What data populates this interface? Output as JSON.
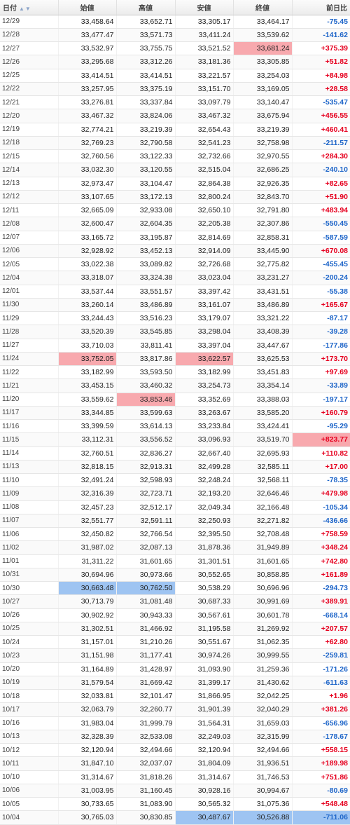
{
  "headers": {
    "date": "日付",
    "open": "始値",
    "high": "高値",
    "low": "安値",
    "close": "終値",
    "change": "前日比"
  },
  "colors": {
    "positive": "#e6001f",
    "negative": "#1f66c9",
    "highlight_max": "#f8a9ae",
    "highlight_min": "#9ec4f2"
  },
  "rows": [
    {
      "date": "12/29",
      "open": "33,458.64",
      "high": "33,652.71",
      "low": "33,305.17",
      "close": "33,464.17",
      "change": "-75.45"
    },
    {
      "date": "12/28",
      "open": "33,477.47",
      "high": "33,571.73",
      "low": "33,411.24",
      "close": "33,539.62",
      "change": "-141.62"
    },
    {
      "date": "12/27",
      "open": "33,532.97",
      "high": "33,755.75",
      "low": "33,521.52",
      "close": "33,681.24",
      "change": "+375.39",
      "hl": {
        "close": "red"
      }
    },
    {
      "date": "12/26",
      "open": "33,295.68",
      "high": "33,312.26",
      "low": "33,181.36",
      "close": "33,305.85",
      "change": "+51.82"
    },
    {
      "date": "12/25",
      "open": "33,414.51",
      "high": "33,414.51",
      "low": "33,221.57",
      "close": "33,254.03",
      "change": "+84.98"
    },
    {
      "date": "12/22",
      "open": "33,257.95",
      "high": "33,375.19",
      "low": "33,151.70",
      "close": "33,169.05",
      "change": "+28.58"
    },
    {
      "date": "12/21",
      "open": "33,276.81",
      "high": "33,337.84",
      "low": "33,097.79",
      "close": "33,140.47",
      "change": "-535.47"
    },
    {
      "date": "12/20",
      "open": "33,467.32",
      "high": "33,824.06",
      "low": "33,467.32",
      "close": "33,675.94",
      "change": "+456.55"
    },
    {
      "date": "12/19",
      "open": "32,774.21",
      "high": "33,219.39",
      "low": "32,654.43",
      "close": "33,219.39",
      "change": "+460.41"
    },
    {
      "date": "12/18",
      "open": "32,769.23",
      "high": "32,790.58",
      "low": "32,541.23",
      "close": "32,758.98",
      "change": "-211.57"
    },
    {
      "date": "12/15",
      "open": "32,760.56",
      "high": "33,122.33",
      "low": "32,732.66",
      "close": "32,970.55",
      "change": "+284.30"
    },
    {
      "date": "12/14",
      "open": "33,032.30",
      "high": "33,120.55",
      "low": "32,515.04",
      "close": "32,686.25",
      "change": "-240.10"
    },
    {
      "date": "12/13",
      "open": "32,973.47",
      "high": "33,104.47",
      "low": "32,864.38",
      "close": "32,926.35",
      "change": "+82.65"
    },
    {
      "date": "12/12",
      "open": "33,107.65",
      "high": "33,172.13",
      "low": "32,800.24",
      "close": "32,843.70",
      "change": "+51.90"
    },
    {
      "date": "12/11",
      "open": "32,665.09",
      "high": "32,933.08",
      "low": "32,650.10",
      "close": "32,791.80",
      "change": "+483.94"
    },
    {
      "date": "12/08",
      "open": "32,600.47",
      "high": "32,604.35",
      "low": "32,205.38",
      "close": "32,307.86",
      "change": "-550.45"
    },
    {
      "date": "12/07",
      "open": "33,165.72",
      "high": "33,195.87",
      "low": "32,814.69",
      "close": "32,858.31",
      "change": "-587.59"
    },
    {
      "date": "12/06",
      "open": "32,928.92",
      "high": "33,452.13",
      "low": "32,914.09",
      "close": "33,445.90",
      "change": "+670.08"
    },
    {
      "date": "12/05",
      "open": "33,022.38",
      "high": "33,089.82",
      "low": "32,726.68",
      "close": "32,775.82",
      "change": "-455.45"
    },
    {
      "date": "12/04",
      "open": "33,318.07",
      "high": "33,324.38",
      "low": "33,023.04",
      "close": "33,231.27",
      "change": "-200.24"
    },
    {
      "date": "12/01",
      "open": "33,537.44",
      "high": "33,551.57",
      "low": "33,397.42",
      "close": "33,431.51",
      "change": "-55.38"
    },
    {
      "date": "11/30",
      "open": "33,260.14",
      "high": "33,486.89",
      "low": "33,161.07",
      "close": "33,486.89",
      "change": "+165.67"
    },
    {
      "date": "11/29",
      "open": "33,244.43",
      "high": "33,516.23",
      "low": "33,179.07",
      "close": "33,321.22",
      "change": "-87.17"
    },
    {
      "date": "11/28",
      "open": "33,520.39",
      "high": "33,545.85",
      "low": "33,298.04",
      "close": "33,408.39",
      "change": "-39.28"
    },
    {
      "date": "11/27",
      "open": "33,710.03",
      "high": "33,811.41",
      "low": "33,397.04",
      "close": "33,447.67",
      "change": "-177.86"
    },
    {
      "date": "11/24",
      "open": "33,752.05",
      "high": "33,817.86",
      "low": "33,622.57",
      "close": "33,625.53",
      "change": "+173.70",
      "hl": {
        "open": "red",
        "low": "red"
      }
    },
    {
      "date": "11/22",
      "open": "33,182.99",
      "high": "33,593.50",
      "low": "33,182.99",
      "close": "33,451.83",
      "change": "+97.69"
    },
    {
      "date": "11/21",
      "open": "33,453.15",
      "high": "33,460.32",
      "low": "33,254.73",
      "close": "33,354.14",
      "change": "-33.89"
    },
    {
      "date": "11/20",
      "open": "33,559.62",
      "high": "33,853.46",
      "low": "33,352.69",
      "close": "33,388.03",
      "change": "-197.17",
      "hl": {
        "high": "red"
      }
    },
    {
      "date": "11/17",
      "open": "33,344.85",
      "high": "33,599.63",
      "low": "33,263.67",
      "close": "33,585.20",
      "change": "+160.79"
    },
    {
      "date": "11/16",
      "open": "33,399.59",
      "high": "33,614.13",
      "low": "33,233.84",
      "close": "33,424.41",
      "change": "-95.29"
    },
    {
      "date": "11/15",
      "open": "33,112.31",
      "high": "33,556.52",
      "low": "33,096.93",
      "close": "33,519.70",
      "change": "+823.77",
      "hl": {
        "change": "red"
      }
    },
    {
      "date": "11/14",
      "open": "32,760.51",
      "high": "32,836.27",
      "low": "32,667.40",
      "close": "32,695.93",
      "change": "+110.82"
    },
    {
      "date": "11/13",
      "open": "32,818.15",
      "high": "32,913.31",
      "low": "32,499.28",
      "close": "32,585.11",
      "change": "+17.00"
    },
    {
      "date": "11/10",
      "open": "32,491.24",
      "high": "32,598.93",
      "low": "32,248.24",
      "close": "32,568.11",
      "change": "-78.35"
    },
    {
      "date": "11/09",
      "open": "32,316.39",
      "high": "32,723.71",
      "low": "32,193.20",
      "close": "32,646.46",
      "change": "+479.98"
    },
    {
      "date": "11/08",
      "open": "32,457.23",
      "high": "32,512.17",
      "low": "32,049.34",
      "close": "32,166.48",
      "change": "-105.34"
    },
    {
      "date": "11/07",
      "open": "32,551.77",
      "high": "32,591.11",
      "low": "32,250.93",
      "close": "32,271.82",
      "change": "-436.66"
    },
    {
      "date": "11/06",
      "open": "32,450.82",
      "high": "32,766.54",
      "low": "32,395.50",
      "close": "32,708.48",
      "change": "+758.59"
    },
    {
      "date": "11/02",
      "open": "31,987.02",
      "high": "32,087.13",
      "low": "31,878.36",
      "close": "31,949.89",
      "change": "+348.24"
    },
    {
      "date": "11/01",
      "open": "31,311.22",
      "high": "31,601.65",
      "low": "31,301.51",
      "close": "31,601.65",
      "change": "+742.80"
    },
    {
      "date": "10/31",
      "open": "30,694.96",
      "high": "30,973.66",
      "low": "30,552.65",
      "close": "30,858.85",
      "change": "+161.89"
    },
    {
      "date": "10/30",
      "open": "30,663.48",
      "high": "30,762.50",
      "low": "30,538.29",
      "close": "30,696.96",
      "change": "-294.73",
      "hl": {
        "open": "blue",
        "high": "blue"
      }
    },
    {
      "date": "10/27",
      "open": "30,713.79",
      "high": "31,081.48",
      "low": "30,687.33",
      "close": "30,991.69",
      "change": "+389.91"
    },
    {
      "date": "10/26",
      "open": "30,902.92",
      "high": "30,943.33",
      "low": "30,567.61",
      "close": "30,601.78",
      "change": "-668.14"
    },
    {
      "date": "10/25",
      "open": "31,302.51",
      "high": "31,466.92",
      "low": "31,195.58",
      "close": "31,269.92",
      "change": "+207.57"
    },
    {
      "date": "10/24",
      "open": "31,157.01",
      "high": "31,210.26",
      "low": "30,551.67",
      "close": "31,062.35",
      "change": "+62.80"
    },
    {
      "date": "10/23",
      "open": "31,151.98",
      "high": "31,177.41",
      "low": "30,974.26",
      "close": "30,999.55",
      "change": "-259.81"
    },
    {
      "date": "10/20",
      "open": "31,164.89",
      "high": "31,428.97",
      "low": "31,093.90",
      "close": "31,259.36",
      "change": "-171.26"
    },
    {
      "date": "10/19",
      "open": "31,579.54",
      "high": "31,669.42",
      "low": "31,399.17",
      "close": "31,430.62",
      "change": "-611.63"
    },
    {
      "date": "10/18",
      "open": "32,033.81",
      "high": "32,101.47",
      "low": "31,866.95",
      "close": "32,042.25",
      "change": "+1.96"
    },
    {
      "date": "10/17",
      "open": "32,063.79",
      "high": "32,260.77",
      "low": "31,901.39",
      "close": "32,040.29",
      "change": "+381.26"
    },
    {
      "date": "10/16",
      "open": "31,983.04",
      "high": "31,999.79",
      "low": "31,564.31",
      "close": "31,659.03",
      "change": "-656.96"
    },
    {
      "date": "10/13",
      "open": "32,328.39",
      "high": "32,533.08",
      "low": "32,249.03",
      "close": "32,315.99",
      "change": "-178.67"
    },
    {
      "date": "10/12",
      "open": "32,120.94",
      "high": "32,494.66",
      "low": "32,120.94",
      "close": "32,494.66",
      "change": "+558.15"
    },
    {
      "date": "10/11",
      "open": "31,847.10",
      "high": "32,037.07",
      "low": "31,804.09",
      "close": "31,936.51",
      "change": "+189.98"
    },
    {
      "date": "10/10",
      "open": "31,314.67",
      "high": "31,818.26",
      "low": "31,314.67",
      "close": "31,746.53",
      "change": "+751.86"
    },
    {
      "date": "10/06",
      "open": "31,003.95",
      "high": "31,160.45",
      "low": "30,928.16",
      "close": "30,994.67",
      "change": "-80.69"
    },
    {
      "date": "10/05",
      "open": "30,733.65",
      "high": "31,083.90",
      "low": "30,565.32",
      "close": "31,075.36",
      "change": "+548.48"
    },
    {
      "date": "10/04",
      "open": "30,765.03",
      "high": "30,830.85",
      "low": "30,487.67",
      "close": "30,526.88",
      "change": "-711.06",
      "hl": {
        "low": "blue",
        "close": "blue",
        "change": "blue"
      }
    }
  ]
}
